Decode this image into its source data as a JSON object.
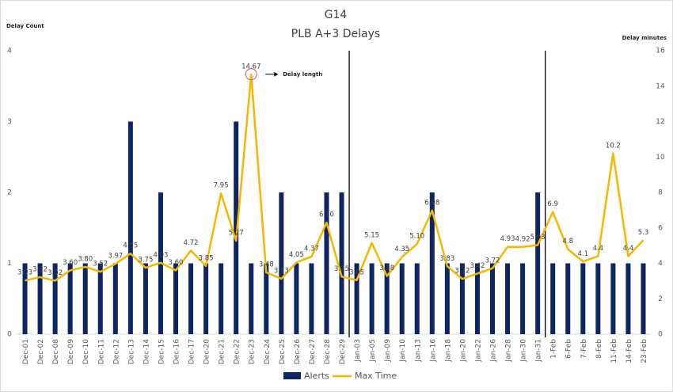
{
  "chart_data": {
    "type": "bar_line",
    "title": "G14",
    "subtitle": "PLB A+3 Delays",
    "y_label": "Delay Count",
    "y2_label": "Delay minutes",
    "annotation": "Delay length",
    "categories": [
      "Dec-01",
      "Dec-02",
      "Dec-08",
      "Dec-09",
      "Dec-10",
      "Dec-11",
      "Dec-12",
      "Dec-13",
      "Dec-14",
      "Dec-15",
      "Dec-16",
      "Dec-17",
      "Dec-20",
      "Dec-21",
      "Dec-22",
      "Dec-23",
      "Dec-24",
      "Dec-25",
      "Dec-26",
      "Dec-27",
      "Dec-28",
      "Dec-29",
      "Jan-03",
      "Jan-05",
      "Jan-09",
      "Jan-10",
      "Jan-13",
      "Jan-16",
      "Jan-18",
      "Jan-20",
      "Jan-22",
      "Jan-26",
      "Jan-28",
      "Jan-30",
      "Jan-31",
      "1-Feb",
      "6-Feb",
      "7-Feb",
      "8-Feb",
      "11-Feb",
      "14-Feb",
      "23-Feb"
    ],
    "series": [
      {
        "name": "Alerts",
        "color": "#0e2562",
        "values": [
          1,
          1,
          1,
          1,
          1,
          1,
          1,
          3,
          1,
          2,
          1,
          1,
          1,
          1,
          3,
          1,
          1,
          2,
          1,
          1,
          2,
          2,
          1,
          1,
          1,
          1,
          1,
          2,
          1,
          1,
          1,
          1,
          1,
          1,
          2,
          1,
          1,
          1,
          1,
          1,
          1,
          1
        ]
      },
      {
        "name": "Max Time",
        "color": "#f5b800",
        "axis": "y2",
        "values": [
          3.03,
          3.22,
          3.02,
          3.6,
          3.8,
          3.52,
          3.97,
          4.55,
          3.75,
          4.03,
          3.6,
          4.72,
          3.85,
          7.95,
          5.27,
          14.67,
          3.48,
          3.13,
          4.05,
          4.37,
          6.3,
          3.25,
          3.05,
          5.15,
          3.28,
          4.35,
          5.1,
          6.98,
          3.83,
          3.12,
          3.42,
          3.72,
          4.93,
          4.92,
          5.03,
          6.9,
          4.8,
          4.1,
          4.4,
          10.2,
          4.4,
          5.3
        ],
        "value_labels": [
          "3.03",
          "3.22",
          "3.02",
          "3.60",
          "3.80",
          "3.52",
          "3.97",
          "4.55",
          "3.75",
          "4.03",
          "3.60",
          "4.72",
          "3.85",
          "7.95",
          "5.27",
          "14.67",
          "3.48",
          "3.13",
          "4.05",
          "4.37",
          "6.30",
          "3.25",
          "3.05",
          "5.15",
          "3.28",
          "4.35",
          "5.10",
          "6.98",
          "3.83",
          "3.12",
          "3.42",
          "3.72",
          "4.93",
          "4.92",
          "5.03",
          "6.9",
          "4.8",
          "4.1",
          "4.4",
          "10.2",
          "4.4",
          "5.3"
        ]
      }
    ],
    "ylim": [
      0,
      4
    ],
    "yticks": [
      0,
      1,
      2,
      3,
      4
    ],
    "y2lim": [
      0,
      16
    ],
    "y2ticks": [
      0,
      2,
      4,
      6,
      8,
      10,
      12,
      14,
      16
    ],
    "legend": "bottom"
  }
}
